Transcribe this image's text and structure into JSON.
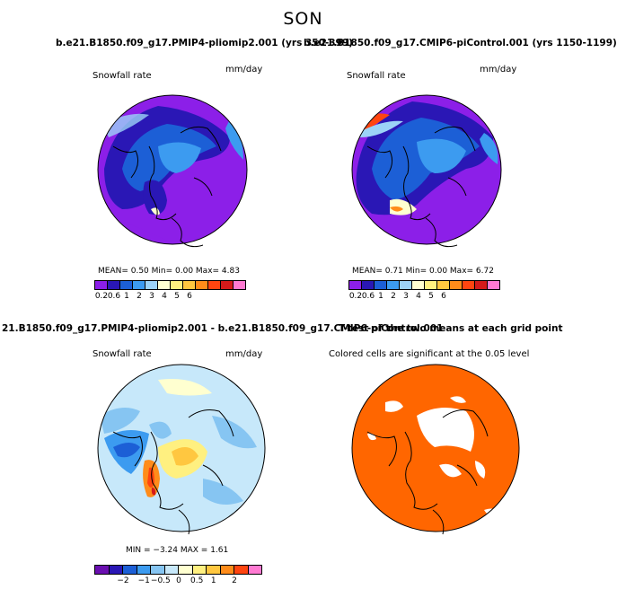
{
  "figure": {
    "season": "SON",
    "header_left": "b.e21.B1850.f09_g17.PMIP4-pliomip2.001 (yrs 350-399)",
    "header_right": "b.e21.B1850.f09_g17.CMIP6-piControl.001 (yrs 1150-1199)",
    "header_diff": "21.B1850.f09_g17.PMIP4-pliomip2.001 - b.e21.B1850.f09_g17.CMIP6-piControl.001",
    "header_ttest": "T-test of the two means at each grid point"
  },
  "panels": {
    "p1": {
      "label": "Snowfall rate",
      "units": "mm/day",
      "stats": "MEAN=   0.50  Min=   0.00  Max=   4.83"
    },
    "p2": {
      "label": "Snowfall rate",
      "units": "mm/day",
      "stats": "MEAN=   0.71  Min=   0.00  Max=   6.72"
    },
    "p3": {
      "label": "Snowfall rate",
      "units": "mm/day",
      "stats": "MIN =  −3.24  MAX =   1.61"
    },
    "p4": {
      "label": "Colored cells are significant at the 0.05 level"
    }
  },
  "chart_data": [
    {
      "type": "heatmap",
      "title": "Snowfall rate",
      "units": "mm/day",
      "projection": "north polar stereographic",
      "experiment": "b.e21.B1850.f09_g17.PMIP4-pliomip2.001 (yrs 350-399)",
      "stats": {
        "mean": 0.5,
        "min": 0.0,
        "max": 4.83
      },
      "colorbar_levels": [
        "0.2",
        "0.6",
        "1",
        "2",
        "3",
        "4",
        "5",
        "6"
      ],
      "colors": [
        "#8c1fe8",
        "#2a17b5",
        "#1c5fd6",
        "#3c9bf0",
        "#9cd3f7",
        "#ffffd0",
        "#fff080",
        "#ffc740",
        "#ff8c1a",
        "#ff4510",
        "#d41a1a",
        "#ff7ad2"
      ]
    },
    {
      "type": "heatmap",
      "title": "Snowfall rate",
      "units": "mm/day",
      "projection": "north polar stereographic",
      "experiment": "b.e21.B1850.f09_g17.CMIP6-piControl.001 (yrs 1150-1199)",
      "stats": {
        "mean": 0.71,
        "min": 0.0,
        "max": 6.72
      },
      "colorbar_levels": [
        "0.2",
        "0.6",
        "1",
        "2",
        "3",
        "4",
        "5",
        "6"
      ]
    },
    {
      "type": "heatmap",
      "title": "Snowfall rate",
      "units": "mm/day",
      "projection": "north polar stereographic",
      "stats": {
        "min": -3.24,
        "max": 1.61
      },
      "colorbar_levels": [
        "−2",
        "−1",
        "−0.5",
        "0",
        "0.5",
        "1",
        "2"
      ],
      "colors": [
        "#6a0fb0",
        "#2a17b5",
        "#1c5fd6",
        "#3c9bf0",
        "#86c5f2",
        "#c7e8fa",
        "#ffffd0",
        "#fff080",
        "#ffc740",
        "#ff8c1a",
        "#ff4510",
        "#ff7ad2"
      ]
    },
    {
      "type": "heatmap",
      "title": "T-test of the two means at each grid point",
      "note": "Colored cells are significant at the 0.05 level",
      "colors": [
        "#ff6600",
        "#ffffff"
      ]
    }
  ]
}
